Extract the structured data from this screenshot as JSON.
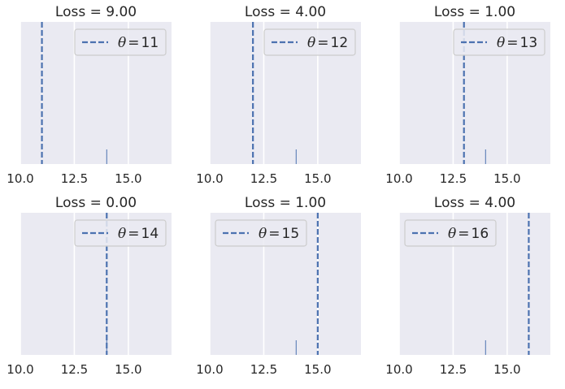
{
  "chart_data": [
    {
      "type": "line",
      "title": "Loss = 9.00",
      "theta_label": "θ",
      "theta": 11,
      "theta_display": "11",
      "observation": 14,
      "xlim": [
        10,
        17
      ],
      "xticks": [
        10.0,
        12.5,
        15.0
      ],
      "xtick_labels": [
        "10.0",
        "12.5",
        "15.0"
      ],
      "legend_position": "top-right",
      "grid": true
    },
    {
      "type": "line",
      "title": "Loss = 4.00",
      "theta_label": "θ",
      "theta": 12,
      "theta_display": "12",
      "observation": 14,
      "xlim": [
        10,
        17
      ],
      "xticks": [
        10.0,
        12.5,
        15.0
      ],
      "xtick_labels": [
        "10.0",
        "12.5",
        "15.0"
      ],
      "legend_position": "top-right",
      "grid": true
    },
    {
      "type": "line",
      "title": "Loss = 1.00",
      "theta_label": "θ",
      "theta": 13,
      "theta_display": "13",
      "observation": 14,
      "xlim": [
        10,
        17
      ],
      "xticks": [
        10.0,
        12.5,
        15.0
      ],
      "xtick_labels": [
        "10.0",
        "12.5",
        "15.0"
      ],
      "legend_position": "top-right",
      "grid": true
    },
    {
      "type": "line",
      "title": "Loss = 0.00",
      "theta_label": "θ",
      "theta": 14,
      "theta_display": "14",
      "observation": 14,
      "xlim": [
        10,
        17
      ],
      "xticks": [
        10.0,
        12.5,
        15.0
      ],
      "xtick_labels": [
        "10.0",
        "12.5",
        "15.0"
      ],
      "legend_position": "top-right",
      "grid": true
    },
    {
      "type": "line",
      "title": "Loss = 1.00",
      "theta_label": "θ",
      "theta": 15,
      "theta_display": "15",
      "observation": 14,
      "xlim": [
        10,
        17
      ],
      "xticks": [
        10.0,
        12.5,
        15.0
      ],
      "xtick_labels": [
        "10.0",
        "12.5",
        "15.0"
      ],
      "legend_position": "top-left",
      "grid": true
    },
    {
      "type": "line",
      "title": "Loss = 4.00",
      "theta_label": "θ",
      "theta": 16,
      "theta_display": "16",
      "observation": 14,
      "xlim": [
        10,
        17
      ],
      "xticks": [
        10.0,
        12.5,
        15.0
      ],
      "xtick_labels": [
        "10.0",
        "12.5",
        "15.0"
      ],
      "legend_position": "top-left",
      "grid": true
    }
  ],
  "colors": {
    "axes_bg": "#eaeaf2",
    "grid": "#ffffff",
    "theta_line": "#4c72b0",
    "observation": "#4c72b0",
    "text": "#262626",
    "legend_bg": "#eaeaf2",
    "legend_border": "#cccccc"
  }
}
